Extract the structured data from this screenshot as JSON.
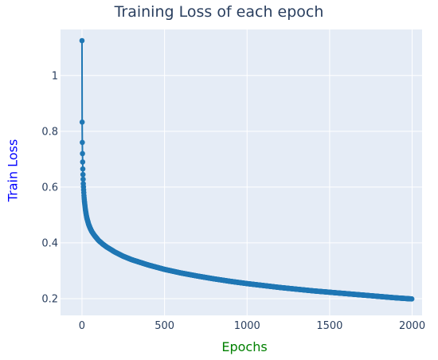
{
  "chart_data": {
    "type": "scatter",
    "mode": "lines+markers",
    "title": "Training Loss of each epoch",
    "xlabel": "Epochs",
    "ylabel": "Train Loss",
    "xlim": [
      -130,
      2060
    ],
    "ylim": [
      0.14,
      1.165
    ],
    "x_ticks": [
      0,
      500,
      1000,
      1500,
      2000
    ],
    "x_tick_labels": [
      "0",
      "500",
      "1000",
      "1500",
      "2000"
    ],
    "y_ticks": [
      0.2,
      0.4,
      0.6,
      0.8,
      1
    ],
    "y_tick_labels": [
      "0.2",
      "0.4",
      "0.6",
      "0.8",
      "1"
    ],
    "grid": true,
    "legend": "none",
    "colors": {
      "plot_background": "#e5ecf6",
      "grid": "#ffffff",
      "series": "#1f77b4",
      "title_text": "#2a3f5f",
      "tick_text": "#2a3f5f",
      "ylabel_text": "#0000ff",
      "xlabel_text": "#008000"
    },
    "series": [
      {
        "x": [
          0,
          1,
          2,
          3,
          4,
          5,
          6,
          7,
          8,
          10,
          12,
          15,
          20,
          25,
          30,
          40,
          50,
          60,
          75,
          100,
          125,
          150,
          200,
          250,
          300,
          400,
          500,
          600,
          700,
          800,
          900,
          1000,
          1100,
          1200,
          1300,
          1400,
          1500,
          1600,
          1700,
          1800,
          1900,
          1999
        ],
        "y": [
          1.125,
          0.833,
          0.76,
          0.72,
          0.69,
          0.665,
          0.645,
          0.628,
          0.612,
          0.59,
          0.57,
          0.548,
          0.522,
          0.503,
          0.488,
          0.467,
          0.452,
          0.44,
          0.427,
          0.409,
          0.396,
          0.385,
          0.367,
          0.352,
          0.34,
          0.321,
          0.305,
          0.292,
          0.281,
          0.271,
          0.262,
          0.254,
          0.247,
          0.24,
          0.234,
          0.228,
          0.223,
          0.218,
          0.213,
          0.208,
          0.203,
          0.199
        ]
      }
    ]
  }
}
